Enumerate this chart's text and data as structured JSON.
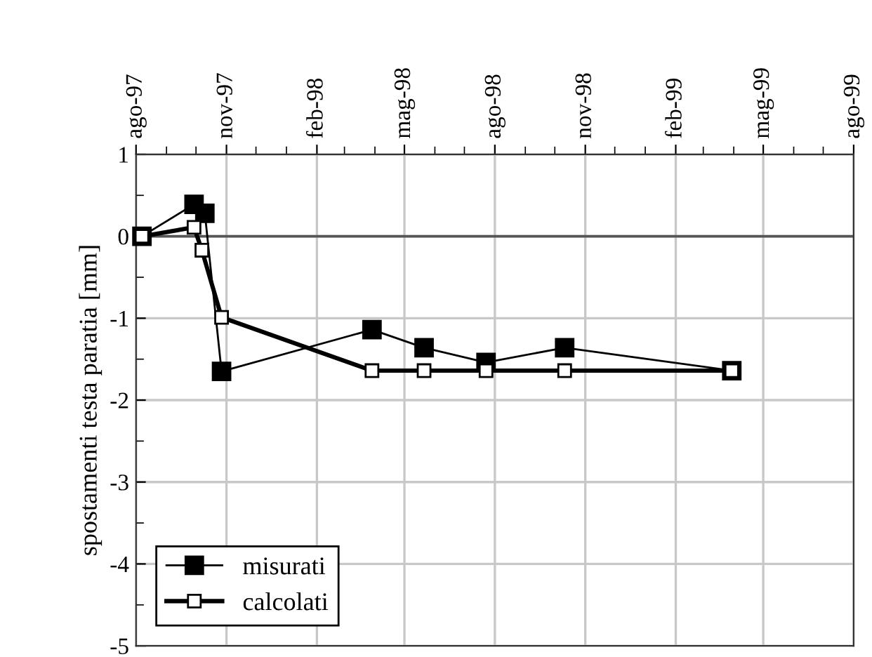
{
  "chart_data": {
    "type": "line",
    "ylabel": "spostamenti testa paratia [mm]",
    "xlim": [
      "1997-08-01",
      "1999-08-01"
    ],
    "xticks": [
      {
        "value": "1997-08-01",
        "label": "ago-97"
      },
      {
        "value": "1997-11-01",
        "label": "nov-97"
      },
      {
        "value": "1998-02-01",
        "label": "feb-98"
      },
      {
        "value": "1998-05-01",
        "label": "mag-98"
      },
      {
        "value": "1998-08-01",
        "label": "ago-98"
      },
      {
        "value": "1998-11-01",
        "label": "nov-98"
      },
      {
        "value": "1999-02-01",
        "label": "feb-99"
      },
      {
        "value": "1999-05-01",
        "label": "mag-99"
      },
      {
        "value": "1999-08-01",
        "label": "ago-99"
      }
    ],
    "ylim": [
      -5,
      1
    ],
    "yticks": [
      -5,
      -4,
      -3,
      -2,
      -1,
      0,
      1
    ],
    "grid": true,
    "legend": "bottom left",
    "marker": "square",
    "line_style": "solid",
    "ref_lines": [
      {
        "axis": "y",
        "value": 0,
        "color": "#555555"
      }
    ],
    "series": [
      {
        "name": "misurati",
        "color": "#000000",
        "x": [
          "1997-08-07",
          "1997-09-29",
          "1997-10-10",
          "1997-10-27",
          "1998-03-29",
          "1998-05-21",
          "1998-07-23",
          "1998-10-11",
          "1999-03-30"
        ],
        "values": [
          0.0,
          0.39,
          0.28,
          -1.65,
          -1.14,
          -1.36,
          -1.54,
          -1.36,
          -1.64
        ]
      },
      {
        "name": "calcolati",
        "color": "#000000",
        "x": [
          "1997-08-07",
          "1997-09-29",
          "1997-10-07",
          "1997-10-27",
          "1998-03-29",
          "1998-05-21",
          "1998-07-23",
          "1998-10-11",
          "1999-03-30"
        ],
        "values": [
          0.0,
          0.11,
          -0.17,
          -0.99,
          -1.64,
          -1.64,
          -1.64,
          -1.64,
          -1.64
        ]
      }
    ]
  }
}
